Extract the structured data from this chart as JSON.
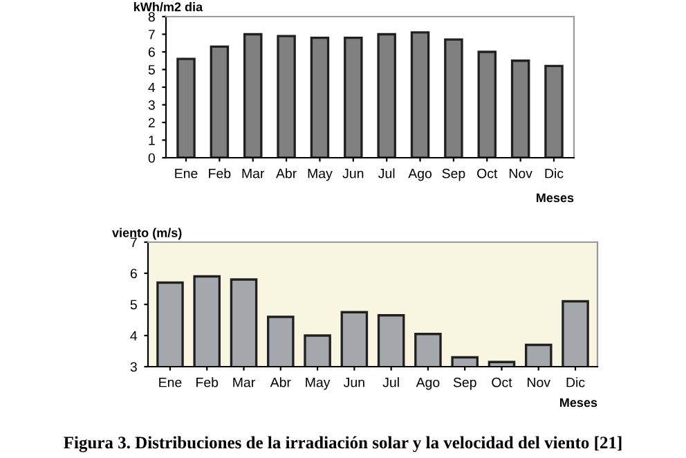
{
  "chart_data": [
    {
      "type": "bar",
      "ylabel": "kWh/m2 dia",
      "xlabel": "Meses",
      "categories": [
        "Ene",
        "Feb",
        "Mar",
        "Abr",
        "May",
        "Jun",
        "Jul",
        "Ago",
        "Sep",
        "Oct",
        "Nov",
        "Dic"
      ],
      "series": [
        {
          "color": "#808080",
          "values": [
            5.6,
            6.3,
            7.0,
            6.9,
            6.8,
            6.8,
            7.0,
            7.1,
            6.7,
            6.0,
            5.5,
            5.2
          ]
        }
      ],
      "ylim": [
        0,
        8
      ],
      "yticks": [
        0,
        1,
        2,
        3,
        4,
        5,
        6,
        7,
        8
      ],
      "grid": false,
      "legend": false
    },
    {
      "type": "bar",
      "ylabel": "viento (m/s)",
      "xlabel": "Meses",
      "categories": [
        "Ene",
        "Feb",
        "Mar",
        "Abr",
        "May",
        "Jun",
        "Jul",
        "Ago",
        "Sep",
        "Oct",
        "Nov",
        "Dic"
      ],
      "series": [
        {
          "color": "#a4a8ac",
          "values": [
            5.7,
            5.9,
            5.8,
            4.6,
            4.0,
            4.75,
            4.65,
            4.05,
            3.3,
            3.15,
            3.7,
            5.1
          ]
        }
      ],
      "ylim": [
        3,
        7
      ],
      "yticks": [
        3,
        4,
        5,
        6,
        7
      ],
      "grid": false,
      "legend": false,
      "annotations": [
        "Figura 3. Distribuciones de la irradiación solar y la velocidad del viento [21]"
      ]
    }
  ]
}
